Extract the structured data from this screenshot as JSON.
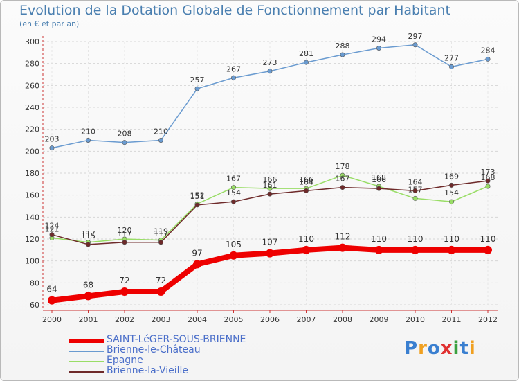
{
  "chart_data": {
    "type": "line",
    "title": "Evolution de la Dotation Globale de Fonctionnement par Habitant",
    "subtitle": "(en € et par an)",
    "categories": [
      "2000",
      "2001",
      "2002",
      "2003",
      "2004",
      "2005",
      "2006",
      "2007",
      "2008",
      "2009",
      "2010",
      "2011",
      "2012"
    ],
    "y_ticks": [
      "60",
      "80",
      "100",
      "120",
      "140",
      "160",
      "180",
      "200",
      "220",
      "240",
      "260",
      "280",
      "300"
    ],
    "ylim": [
      60,
      300
    ],
    "grid": true,
    "series": [
      {
        "name": "Brienne-le-Château",
        "color": "#6a9bd0",
        "values": [
          203,
          210,
          208,
          210,
          257,
          267,
          273,
          281,
          288,
          294,
          297,
          277,
          284
        ],
        "labels": [
          "203",
          "210",
          "208",
          "210",
          "257",
          "267",
          "273",
          "281",
          "288",
          "294",
          "297",
          "277",
          "284"
        ]
      },
      {
        "name": "Epagne",
        "color": "#99dd66",
        "values": [
          121,
          117,
          120,
          119,
          152,
          167,
          166,
          166,
          178,
          168,
          157,
          154,
          168
        ],
        "labels": [
          "121",
          "117",
          "120",
          "119",
          "152",
          "167",
          "166",
          "166",
          "178",
          "168",
          "157",
          "154",
          "168"
        ]
      },
      {
        "name": "Brienne-la-Vieille",
        "color": "#6e2a2a",
        "values": [
          124,
          115,
          117,
          117,
          151,
          154,
          161,
          164,
          167,
          166,
          164,
          169,
          173
        ],
        "labels": [
          "124",
          "115",
          "117",
          "117",
          "151",
          "154",
          "161",
          "164",
          "167",
          "166",
          "164",
          "169",
          "173"
        ]
      },
      {
        "name": "SAINT-LéGER-SOUS-BRIENNE",
        "color": "#ee0000",
        "values": [
          64,
          68,
          72,
          72,
          97,
          105,
          107,
          110,
          112,
          110,
          110,
          110,
          110
        ],
        "labels": [
          "64",
          "68",
          "72",
          "72",
          "97",
          "105",
          "107",
          "110",
          "112",
          "110",
          "110",
          "110",
          "110"
        ]
      }
    ],
    "legend": [
      "SAINT-LéGER-SOUS-BRIENNE",
      "Brienne-le-Château",
      "Epagne",
      "Brienne-la-Vieille"
    ],
    "legend_position": "bottom-left"
  },
  "branding": {
    "logo_text": "Proxiti"
  }
}
